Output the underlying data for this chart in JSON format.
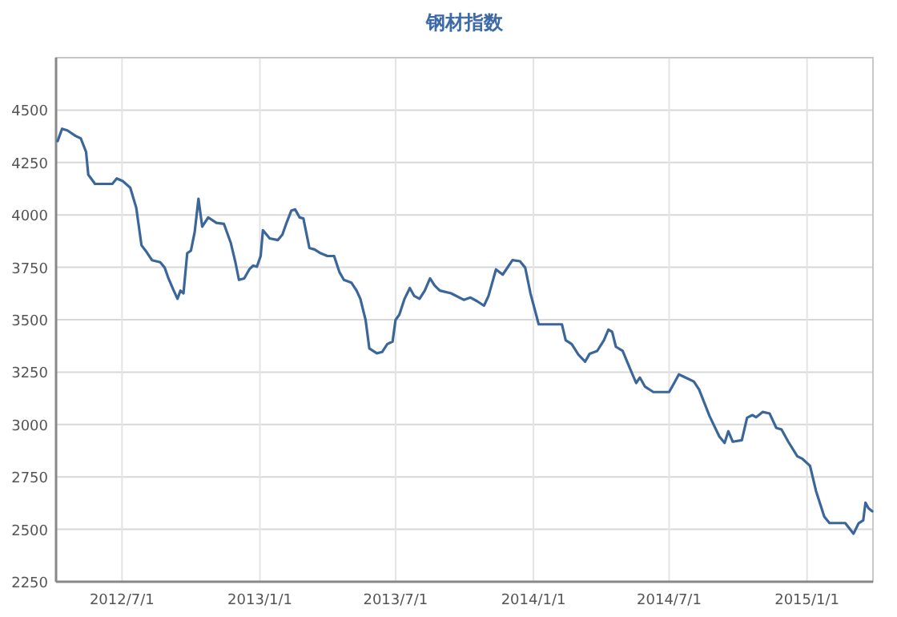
{
  "chart_data": {
    "type": "line",
    "title": "钢材指数",
    "color": "#3b6699",
    "grid": true,
    "legend": false,
    "marker": "none",
    "line_style": "solid",
    "xlim": [
      "2012-04-04",
      "2015-03-30"
    ],
    "xticks": [
      {
        "value": "2012-07-01",
        "label": "2012/7/1"
      },
      {
        "value": "2013-01-01",
        "label": "2013/1/1"
      },
      {
        "value": "2013-07-01",
        "label": "2013/7/1"
      },
      {
        "value": "2014-01-01",
        "label": "2014/1/1"
      },
      {
        "value": "2014-07-01",
        "label": "2014/7/1"
      },
      {
        "value": "2015-01-01",
        "label": "2015/1/1"
      }
    ],
    "ylim": [
      2250,
      4750
    ],
    "yticks": [
      2250,
      2500,
      2750,
      3000,
      3250,
      3500,
      3750,
      4000,
      4250,
      4500
    ],
    "x": [
      "2012-04-06",
      "2012-04-12",
      "2012-04-19",
      "2012-04-30",
      "2012-05-07",
      "2012-05-14",
      "2012-05-17",
      "2012-05-26",
      "2012-06-18",
      "2012-06-24",
      "2012-07-02",
      "2012-07-12",
      "2012-07-20",
      "2012-07-27",
      "2012-08-03",
      "2012-08-10",
      "2012-08-21",
      "2012-08-27",
      "2012-09-01",
      "2012-09-08",
      "2012-09-13",
      "2012-09-17",
      "2012-09-21",
      "2012-09-26",
      "2012-10-01",
      "2012-10-06",
      "2012-10-11",
      "2012-10-16",
      "2012-10-24",
      "2012-11-04",
      "2012-11-14",
      "2012-11-23",
      "2012-11-29",
      "2012-12-04",
      "2012-12-11",
      "2012-12-18",
      "2012-12-23",
      "2012-12-28",
      "2013-01-02",
      "2013-01-05",
      "2013-01-14",
      "2013-01-25",
      "2013-01-31",
      "2013-02-05",
      "2013-02-12",
      "2013-02-17",
      "2013-02-23",
      "2013-02-28",
      "2013-03-08",
      "2013-03-15",
      "2013-03-23",
      "2013-04-01",
      "2013-04-10",
      "2013-04-17",
      "2013-04-23",
      "2013-05-03",
      "2013-05-10",
      "2013-05-15",
      "2013-05-22",
      "2013-05-27",
      "2013-06-06",
      "2013-06-13",
      "2013-06-20",
      "2013-06-27",
      "2013-07-01",
      "2013-07-06",
      "2013-07-13",
      "2013-07-20",
      "2013-07-26",
      "2013-08-02",
      "2013-08-09",
      "2013-08-16",
      "2013-08-22",
      "2013-08-29",
      "2013-09-13",
      "2013-09-30",
      "2013-10-09",
      "2013-10-18",
      "2013-10-27",
      "2013-11-02",
      "2013-11-12",
      "2013-11-21",
      "2013-12-04",
      "2013-12-14",
      "2013-12-21",
      "2013-12-28",
      "2014-01-08",
      "2014-02-08",
      "2014-02-13",
      "2014-02-21",
      "2014-03-02",
      "2014-03-11",
      "2014-03-17",
      "2014-03-27",
      "2014-04-05",
      "2014-04-11",
      "2014-04-16",
      "2014-04-21",
      "2014-04-30",
      "2014-05-09",
      "2014-05-18",
      "2014-05-23",
      "2014-05-30",
      "2014-06-10",
      "2014-07-01",
      "2014-07-07",
      "2014-07-14",
      "2014-07-23",
      "2014-08-03",
      "2014-08-10",
      "2014-08-24",
      "2014-09-06",
      "2014-09-13",
      "2014-09-18",
      "2014-09-24",
      "2014-10-06",
      "2014-10-13",
      "2014-10-20",
      "2014-10-25",
      "2014-11-03",
      "2014-11-12",
      "2014-11-21",
      "2014-11-28",
      "2014-12-07",
      "2014-12-19",
      "2014-12-26",
      "2015-01-05",
      "2015-01-13",
      "2015-01-24",
      "2015-01-31",
      "2015-02-21",
      "2015-03-04",
      "2015-03-11",
      "2015-03-17",
      "2015-03-20",
      "2015-03-24",
      "2015-03-29"
    ],
    "values": [
      4352,
      4411,
      4403,
      4377,
      4365,
      4301,
      4192,
      4148,
      4148,
      4174,
      4161,
      4130,
      4034,
      3855,
      3822,
      3784,
      3774,
      3748,
      3697,
      3639,
      3600,
      3639,
      3626,
      3817,
      3830,
      3919,
      4077,
      3944,
      3988,
      3962,
      3957,
      3868,
      3779,
      3690,
      3697,
      3741,
      3758,
      3753,
      3804,
      3927,
      3888,
      3880,
      3906,
      3957,
      4021,
      4026,
      3988,
      3983,
      3842,
      3835,
      3817,
      3804,
      3804,
      3728,
      3690,
      3677,
      3639,
      3600,
      3499,
      3363,
      3340,
      3346,
      3384,
      3396,
      3499,
      3524,
      3600,
      3651,
      3613,
      3600,
      3639,
      3697,
      3664,
      3639,
      3626,
      3595,
      3606,
      3588,
      3567,
      3613,
      3740,
      3715,
      3784,
      3779,
      3748,
      3626,
      3478,
      3478,
      3402,
      3384,
      3333,
      3300,
      3338,
      3351,
      3402,
      3453,
      3442,
      3371,
      3351,
      3274,
      3198,
      3224,
      3180,
      3155,
      3155,
      3193,
      3239,
      3224,
      3205,
      3167,
      3040,
      2943,
      2912,
      2968,
      2918,
      2925,
      3032,
      3045,
      3035,
      3060,
      3053,
      2984,
      2976,
      2918,
      2849,
      2836,
      2803,
      2683,
      2561,
      2530,
      2530,
      2479,
      2530,
      2543,
      2627,
      2601,
      2586
    ]
  }
}
